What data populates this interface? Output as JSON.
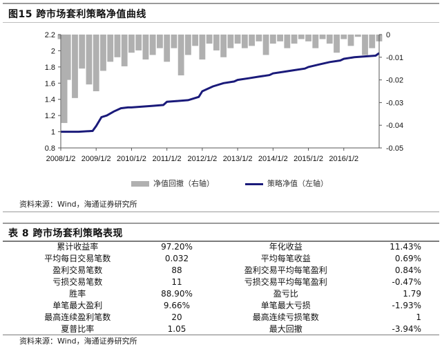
{
  "figure": {
    "title": "图15 跨市场套利策略净值曲线",
    "source": "资料来源：Wind，海通证券研究所"
  },
  "chart_data": {
    "type": "line",
    "title": "图15 跨市场套利策略净值曲线",
    "x_tick_labels": [
      "2008/1/2",
      "2009/1/2",
      "2010/1/2",
      "2011/1/2",
      "2012/1/2",
      "2013/1/2",
      "2014/1/2",
      "2015/1/2",
      "2016/1/2"
    ],
    "left_axis": {
      "ticks": [
        "0.8",
        "1",
        "1.2",
        "1.4",
        "1.6",
        "1.8",
        "2",
        "2.2"
      ],
      "ylim": [
        0.8,
        2.2
      ]
    },
    "right_axis": {
      "ticks": [
        "0",
        "-0.01",
        "-0.02",
        "-0.03",
        "-0.04",
        "-0.05"
      ],
      "ylim": [
        -0.05,
        0
      ]
    },
    "series": [
      {
        "name": "策略净值（左轴）",
        "axis": "left",
        "color": "#1a1a7a",
        "x": [
          2008.0,
          2008.5,
          2008.9,
          2009.0,
          2009.15,
          2009.3,
          2009.5,
          2009.7,
          2009.9,
          2010.0,
          2010.3,
          2010.6,
          2010.9,
          2011.0,
          2011.3,
          2011.6,
          2011.9,
          2012.0,
          2012.3,
          2012.6,
          2012.9,
          2013.0,
          2013.3,
          2013.6,
          2013.9,
          2014.0,
          2014.3,
          2014.6,
          2014.9,
          2015.0,
          2015.3,
          2015.6,
          2015.9,
          2016.0,
          2016.3,
          2016.6,
          2016.9,
          2017.0
        ],
        "y": [
          1.0,
          1.0,
          1.01,
          1.07,
          1.18,
          1.2,
          1.25,
          1.29,
          1.3,
          1.3,
          1.31,
          1.32,
          1.33,
          1.37,
          1.38,
          1.39,
          1.43,
          1.5,
          1.56,
          1.6,
          1.62,
          1.64,
          1.66,
          1.68,
          1.7,
          1.72,
          1.74,
          1.76,
          1.78,
          1.8,
          1.83,
          1.86,
          1.88,
          1.9,
          1.92,
          1.93,
          1.94,
          1.97
        ]
      },
      {
        "name": "净值回撤（右轴）",
        "axis": "right",
        "color": "#b0b0b0",
        "x": [
          2008.0,
          2008.1,
          2008.2,
          2008.4,
          2008.6,
          2008.8,
          2009.0,
          2009.2,
          2009.4,
          2009.6,
          2009.8,
          2010.0,
          2010.2,
          2010.4,
          2010.6,
          2010.8,
          2011.0,
          2011.2,
          2011.4,
          2011.6,
          2011.8,
          2012.0,
          2012.2,
          2012.4,
          2012.6,
          2012.8,
          2013.0,
          2013.2,
          2013.4,
          2013.6,
          2013.8,
          2014.0,
          2014.2,
          2014.4,
          2014.6,
          2014.8,
          2015.0,
          2015.2,
          2015.4,
          2015.6,
          2015.8,
          2016.0,
          2016.2,
          2016.4,
          2016.6,
          2016.8,
          2017.0
        ],
        "y": [
          -0.002,
          -0.039,
          -0.02,
          -0.028,
          -0.015,
          -0.022,
          -0.025,
          -0.016,
          -0.012,
          -0.01,
          -0.014,
          -0.008,
          -0.007,
          -0.011,
          -0.009,
          -0.006,
          -0.012,
          -0.006,
          -0.018,
          -0.009,
          -0.005,
          -0.011,
          -0.004,
          -0.007,
          -0.01,
          -0.006,
          -0.004,
          -0.006,
          -0.005,
          -0.003,
          -0.009,
          -0.004,
          -0.003,
          -0.006,
          -0.004,
          -0.002,
          -0.003,
          -0.006,
          -0.002,
          -0.004,
          -0.008,
          -0.002,
          -0.005,
          -0.001,
          -0.009,
          -0.006,
          -0.003
        ]
      }
    ],
    "legend": [
      "净值回撤（右轴）",
      "策略净值（左轴）"
    ],
    "legend_position": "bottom"
  },
  "table": {
    "title": "表 8  跨市场套利策略表现",
    "rows": [
      [
        "累计收益率",
        "97.20%",
        "年化收益",
        "11.43%"
      ],
      [
        "平均每日交易笔数",
        "0.032",
        "平均每笔收益",
        "0.69%"
      ],
      [
        "盈利交易笔数",
        "88",
        "盈利交易平均每笔盈利",
        "0.84%"
      ],
      [
        "亏损交易笔数",
        "11",
        "亏损交易平均每笔盈利",
        "-0.47%"
      ],
      [
        "胜率",
        "88.90%",
        "盈亏比",
        "1.79"
      ],
      [
        "单笔最大盈利",
        "9.66%",
        "单笔最大亏损",
        "-1.93%"
      ],
      [
        "最高连续盈利笔数",
        "20",
        "最高连续亏损笔数",
        "1"
      ],
      [
        "夏普比率",
        "1.05",
        "最大回撤",
        "-3.94%"
      ]
    ],
    "source": "资料来源：Wind，海通证券研究所"
  }
}
